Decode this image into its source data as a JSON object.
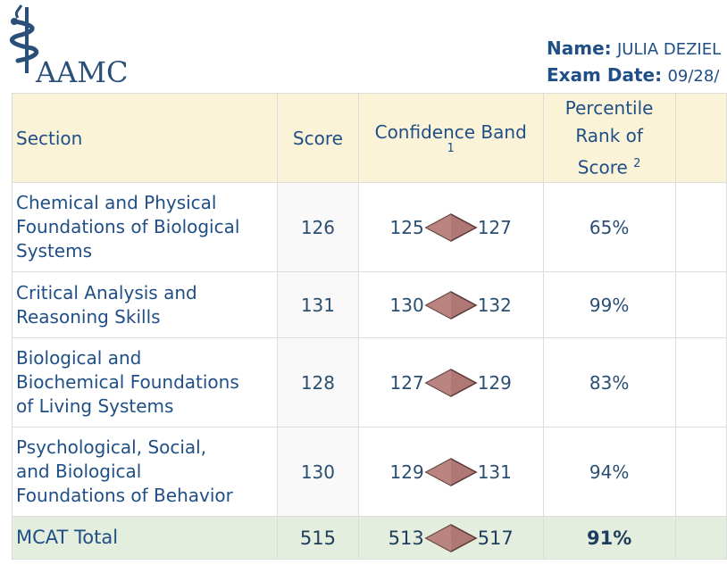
{
  "logo": {
    "text": "AAMC"
  },
  "header": {
    "name_label": "Name:",
    "name_value": "JULIA DEZIEL",
    "exam_label": "Exam Date:",
    "exam_value": "09/28/"
  },
  "table": {
    "columns": {
      "section": "Section",
      "score": "Score",
      "confidence_band": "Confidence Band",
      "confidence_note": "1",
      "percentile": "Percentile Rank of Score",
      "percentile_line1": "Percentile",
      "percentile_line2": "Rank of",
      "percentile_line3": "Score",
      "percentile_note": "2"
    },
    "rows": [
      {
        "section_lines": [
          "Chemical and Physical",
          "Foundations of Biological",
          "Systems"
        ],
        "score": "126",
        "band_low": "125",
        "band_high": "127",
        "percentile": "65%"
      },
      {
        "section_lines": [
          "Critical Analysis and",
          "Reasoning Skills"
        ],
        "score": "131",
        "band_low": "130",
        "band_high": "132",
        "percentile": "99%"
      },
      {
        "section_lines": [
          "Biological and",
          "Biochemical Foundations",
          "of Living Systems"
        ],
        "score": "128",
        "band_low": "127",
        "band_high": "129",
        "percentile": "83%"
      },
      {
        "section_lines": [
          "Psychological, Social,",
          "and Biological",
          "Foundations of Behavior"
        ],
        "score": "130",
        "band_low": "129",
        "band_high": "131",
        "percentile": "94%"
      }
    ],
    "total": {
      "section": "MCAT Total",
      "score": "515",
      "band_low": "513",
      "band_high": "517",
      "percentile": "91%"
    }
  },
  "colors": {
    "text": "#1f4f86",
    "header_bg": "#fbf3d8",
    "total_bg": "#e3eedf",
    "diamond": "#b07874"
  }
}
